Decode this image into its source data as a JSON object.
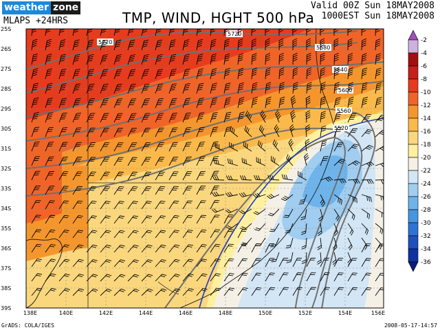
{
  "header": {
    "logo_weather": "weather",
    "logo_zone": "zone",
    "model": "MLAPS +24HRS",
    "title": "TMP, WIND, HGHT 500 hPa",
    "valid_line1": "Valid 00Z Sun 18MAY2008",
    "valid_line2": "1000EST Sun 18MAY2008"
  },
  "footer": {
    "credit": "GrADS: COLA/IGES",
    "timestamp": "2008-05-17-14:57"
  },
  "map": {
    "lat_labels": [
      "25S",
      "26S",
      "27S",
      "28S",
      "29S",
      "30S",
      "31S",
      "32S",
      "33S",
      "34S",
      "35S",
      "36S",
      "37S",
      "38S",
      "39S"
    ],
    "lon_labels": [
      "138E",
      "140E",
      "142E",
      "144E",
      "146E",
      "148E",
      "150E",
      "152E",
      "154E",
      "156E"
    ],
    "contour_labels": [
      "5720",
      "5720",
      "5680",
      "5640",
      "5600",
      "5560",
      "5520"
    ]
  },
  "legend": {
    "values": [
      "-2",
      "-4",
      "-6",
      "-8",
      "-10",
      "-12",
      "-14",
      "-16",
      "-18",
      "-20",
      "-22",
      "-24",
      "-26",
      "-28",
      "-30",
      "-32",
      "-34",
      "-36"
    ],
    "colors": [
      "#a050b8",
      "#d0b0e0",
      "#a01010",
      "#c81e1e",
      "#e63c1e",
      "#f06428",
      "#f5962d",
      "#faba4b",
      "#fad77d",
      "#fff0a0",
      "#f5f0e6",
      "#d2e6f5",
      "#a0cdf0",
      "#6eb4eb",
      "#4696e1",
      "#2d73d2",
      "#1e50be",
      "#0f32a0",
      "#0a1e78"
    ]
  }
}
